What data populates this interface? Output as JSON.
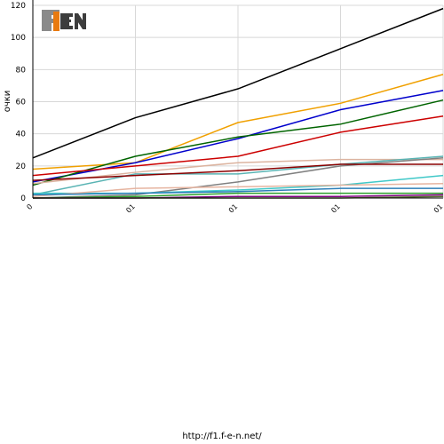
{
  "footer": {
    "url": "http://f1.f-e-n.net/"
  },
  "logo": {
    "text": "F1 EN"
  },
  "chart_data": {
    "type": "line",
    "ylabel": "очки",
    "ylim": [
      0,
      120
    ],
    "yticks": [
      0,
      20,
      40,
      60,
      80,
      100,
      120
    ],
    "x": [
      0,
      1,
      2,
      3,
      4
    ],
    "xtick_labels": [
      "0",
      "01",
      "01",
      "01",
      "01"
    ],
    "grid": true,
    "series": [
      {
        "color": "#000000",
        "values": [
          25,
          50,
          68,
          93,
          118
        ]
      },
      {
        "color": "#f0a000",
        "values": [
          18,
          22,
          47,
          59,
          77
        ]
      },
      {
        "color": "#0000cc",
        "values": [
          10,
          22,
          37,
          55,
          67
        ]
      },
      {
        "color": "#006400",
        "values": [
          8,
          26,
          38,
          46,
          61
        ]
      },
      {
        "color": "#cc0000",
        "values": [
          14,
          20,
          26,
          41,
          51
        ]
      },
      {
        "color": "#dcb4a0",
        "values": [
          9,
          16,
          22,
          24,
          24
        ]
      },
      {
        "color": "#5ab4b4",
        "values": [
          2,
          15,
          15,
          21,
          26
        ]
      },
      {
        "color": "#808080",
        "values": [
          0,
          2,
          10,
          20,
          25
        ]
      },
      {
        "color": "#8b0000",
        "values": [
          11,
          14,
          17,
          21,
          21
        ]
      },
      {
        "color": "#40c8c8",
        "values": [
          3,
          3,
          5,
          8,
          14
        ]
      },
      {
        "color": "#e6b4a0",
        "values": [
          1,
          6,
          7,
          8,
          9
        ]
      },
      {
        "color": "#2c7fb8",
        "values": [
          2,
          3,
          4,
          6,
          6
        ]
      },
      {
        "color": "#2ca02c",
        "values": [
          0,
          1,
          3,
          3,
          3
        ]
      },
      {
        "color": "#800080",
        "values": [
          0,
          0,
          1,
          1,
          2
        ]
      },
      {
        "color": "#556b2f",
        "values": [
          0,
          0,
          0,
          0,
          1
        ]
      }
    ]
  }
}
